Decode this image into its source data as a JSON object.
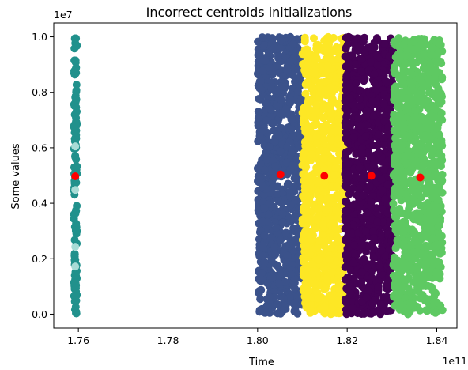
{
  "chart_data": {
    "type": "scatter",
    "title": "Incorrect centroids initializations",
    "xlabel": "Time",
    "ylabel": "Some values",
    "x_exponent_label": "1e11",
    "y_exponent_label": "1e7",
    "xlim": [
      1.7545,
      1.8445
    ],
    "ylim": [
      -0.05,
      1.05
    ],
    "x_ticks": [
      1.76,
      1.78,
      1.8,
      1.82,
      1.84
    ],
    "x_tick_labels": [
      "1.76",
      "1.78",
      "1.80",
      "1.82",
      "1.84"
    ],
    "y_ticks": [
      0.0,
      0.2,
      0.4,
      0.6,
      0.8,
      1.0
    ],
    "y_tick_labels": [
      "0.0",
      "0.2",
      "0.4",
      "0.6",
      "0.8",
      "1.0"
    ],
    "grid": false,
    "clusters": [
      {
        "color": "#21918c",
        "x_range": [
          1.759,
          1.7597
        ],
        "y_range": [
          0.0,
          1.0
        ]
      },
      {
        "color": "#3b528b",
        "x_range": [
          1.8,
          1.81
        ],
        "y_range": [
          0.0,
          1.0
        ]
      },
      {
        "color": "#fde725",
        "x_range": [
          1.81,
          1.8195
        ],
        "y_range": [
          0.0,
          1.0
        ]
      },
      {
        "color": "#440154",
        "x_range": [
          1.8195,
          1.8303
        ],
        "y_range": [
          0.0,
          1.0
        ]
      },
      {
        "color": "#5ec962",
        "x_range": [
          1.8303,
          1.8413
        ],
        "y_range": [
          0.0,
          1.0
        ]
      }
    ],
    "initial_centroids": {
      "color": "#a8dcd6",
      "points": [
        {
          "x": 1.7593,
          "y": 0.605
        },
        {
          "x": 1.7593,
          "y": 0.448
        },
        {
          "x": 1.7593,
          "y": 0.243
        },
        {
          "x": 1.7593,
          "y": 0.172
        }
      ]
    },
    "centroids": {
      "color": "#ff0000",
      "points": [
        {
          "x": 1.7593,
          "y": 0.497
        },
        {
          "x": 1.8051,
          "y": 0.504
        },
        {
          "x": 1.8149,
          "y": 0.499
        },
        {
          "x": 1.8254,
          "y": 0.499
        },
        {
          "x": 1.8363,
          "y": 0.493
        }
      ]
    }
  }
}
